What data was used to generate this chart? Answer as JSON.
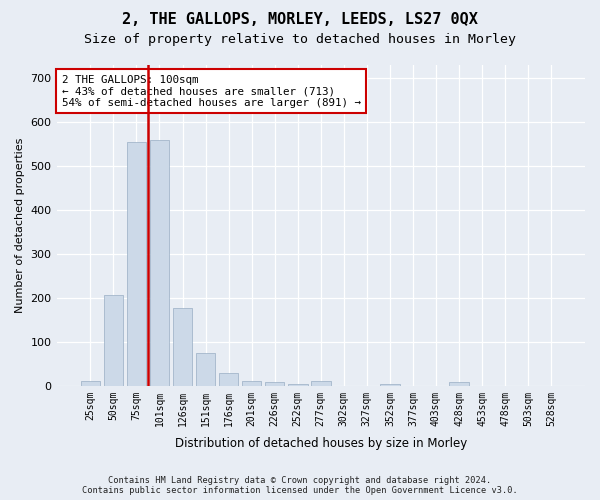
{
  "title": "2, THE GALLOPS, MORLEY, LEEDS, LS27 0QX",
  "subtitle": "Size of property relative to detached houses in Morley",
  "xlabel": "Distribution of detached houses by size in Morley",
  "ylabel": "Number of detached properties",
  "categories": [
    "25sqm",
    "50sqm",
    "75sqm",
    "101sqm",
    "126sqm",
    "151sqm",
    "176sqm",
    "201sqm",
    "226sqm",
    "252sqm",
    "277sqm",
    "302sqm",
    "327sqm",
    "352sqm",
    "377sqm",
    "403sqm",
    "428sqm",
    "453sqm",
    "478sqm",
    "503sqm",
    "528sqm"
  ],
  "values": [
    12,
    207,
    555,
    560,
    178,
    75,
    28,
    12,
    8,
    5,
    10,
    0,
    0,
    5,
    0,
    0,
    8,
    0,
    0,
    0,
    0
  ],
  "bar_color": "#ccd9e8",
  "bar_edge_color": "#99aec4",
  "vline_color": "#cc0000",
  "annotation_text": "2 THE GALLOPS: 100sqm\n← 43% of detached houses are smaller (713)\n54% of semi-detached houses are larger (891) →",
  "annotation_box_color": "#ffffff",
  "annotation_box_edge": "#cc0000",
  "ylim": [
    0,
    730
  ],
  "yticks": [
    0,
    100,
    200,
    300,
    400,
    500,
    600,
    700
  ],
  "footer_line1": "Contains HM Land Registry data © Crown copyright and database right 2024.",
  "footer_line2": "Contains public sector information licensed under the Open Government Licence v3.0.",
  "bg_color": "#e8edf4",
  "title_fontsize": 11,
  "subtitle_fontsize": 9.5,
  "bar_width": 0.85
}
